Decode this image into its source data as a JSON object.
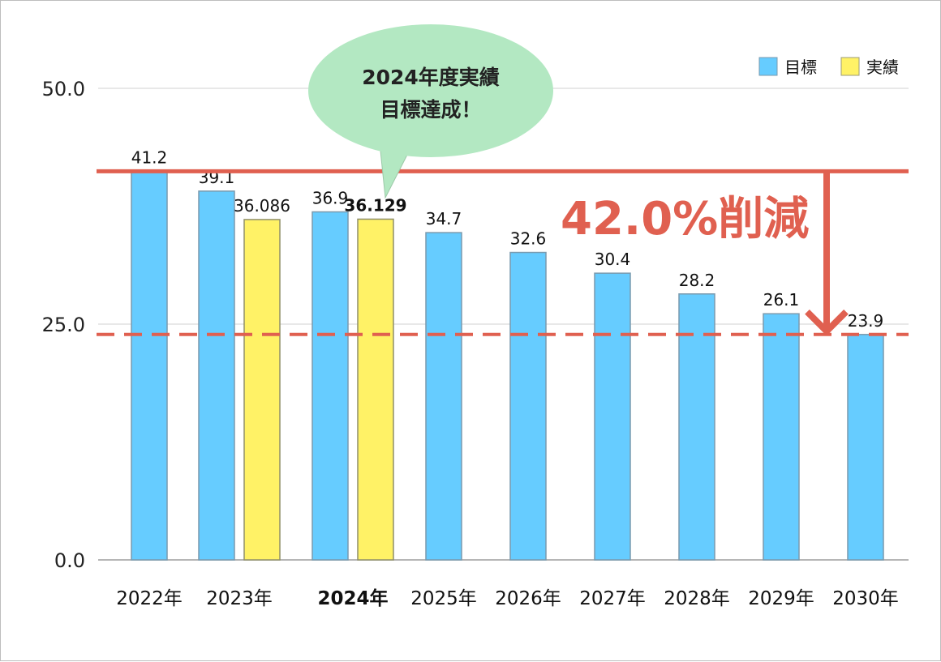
{
  "chart_data": {
    "type": "bar",
    "categories": [
      "2022年",
      "2023年",
      "2024年",
      "2025年",
      "2026年",
      "2027年",
      "2028年",
      "2029年",
      "2030年"
    ],
    "series": [
      {
        "name": "目標",
        "color": "#66ccff",
        "values": [
          41.2,
          39.1,
          36.9,
          34.7,
          32.6,
          30.4,
          28.2,
          26.1,
          23.9
        ],
        "labels": [
          "41.2",
          "39.1",
          "36.9",
          "34.7",
          "32.6",
          "30.4",
          "28.2",
          "26.1",
          "23.9"
        ]
      },
      {
        "name": "実績",
        "color": "#fff266",
        "values": [
          null,
          36.086,
          36.129,
          null,
          null,
          null,
          null,
          null,
          null
        ],
        "labels": [
          null,
          "36.086",
          "36.129",
          null,
          null,
          null,
          null,
          null,
          null
        ]
      }
    ],
    "highlight_category": "2024年",
    "ylim": [
      0,
      50
    ],
    "yticks": [
      "0.0",
      "25.0",
      "50.0"
    ],
    "grid": true,
    "legend_position": "top-right",
    "reference_lines": [
      {
        "value": 41.2,
        "style": "solid",
        "color": "#e06050"
      },
      {
        "value": 23.9,
        "style": "dashed",
        "color": "#e06050"
      }
    ],
    "annotations": {
      "callout_line1": "2024年度実績",
      "callout_line2": "目標達成！",
      "callout_color": "#b3e8c2",
      "reduction_label": "42.0%削減"
    }
  }
}
